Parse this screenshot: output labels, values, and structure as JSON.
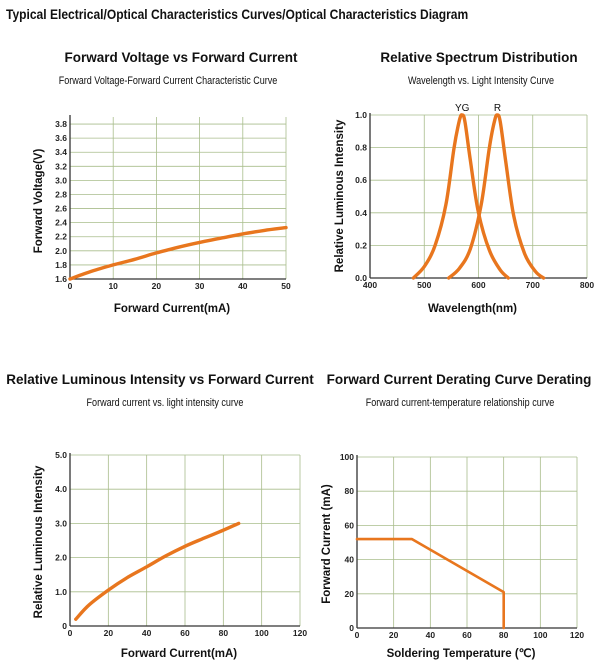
{
  "page_title": "Typical Electrical/Optical Characteristics Curves/Optical Characteristics Diagram",
  "colors": {
    "curve": "#E8761E",
    "grid": "#a9bd8c",
    "axis": "#333333",
    "curve_drop": "#d9635a"
  },
  "chart_data": [
    {
      "type": "line",
      "title": "Forward Voltage vs Forward Current",
      "subtitle": "Forward Voltage-Forward Current Characteristic Curve",
      "xlabel": "Forward Current(mA)",
      "ylabel": "Forward Voltage(V)",
      "xlim": [
        0,
        50
      ],
      "ylim": [
        1.6,
        3.9
      ],
      "xticks": [
        "0",
        "10",
        "20",
        "30",
        "40",
        "50"
      ],
      "yticks": [
        "1.6",
        "1.8",
        "2.0",
        "2.2",
        "2.4",
        "2.6",
        "2.8",
        "3.0",
        "3.2",
        "3.4",
        "3.6",
        "3.8"
      ],
      "grid": true,
      "series": [
        {
          "x": [
            0,
            5,
            10,
            15,
            20,
            25,
            30,
            35,
            40,
            45,
            50
          ],
          "y": [
            1.6,
            1.71,
            1.8,
            1.88,
            1.97,
            2.05,
            2.12,
            2.18,
            2.24,
            2.29,
            2.33
          ]
        }
      ]
    },
    {
      "type": "line",
      "title": "Relative Spectrum Distribution",
      "subtitle": "Wavelength vs. Light Intensity Curve",
      "xlabel": "Wavelength(nm)",
      "ylabel": "Relative Luminous Intensity",
      "xlim": [
        400,
        800
      ],
      "ylim": [
        0,
        1.0
      ],
      "xticks": [
        "400",
        "500",
        "600",
        "700",
        "800"
      ],
      "yticks": [
        "0.0",
        "0.2",
        "0.4",
        "0.6",
        "0.8",
        "1.0"
      ],
      "grid": true,
      "series": [
        {
          "name": "YG",
          "x": [
            480,
            500,
            520,
            540,
            555,
            565,
            570,
            575,
            585,
            600,
            620,
            640,
            655
          ],
          "y": [
            0.0,
            0.07,
            0.2,
            0.45,
            0.8,
            0.97,
            1.0,
            0.96,
            0.72,
            0.4,
            0.17,
            0.05,
            0.0
          ]
        },
        {
          "name": "R",
          "x": [
            545,
            565,
            585,
            605,
            620,
            630,
            635,
            640,
            650,
            665,
            685,
            705,
            720
          ],
          "y": [
            0.0,
            0.06,
            0.18,
            0.45,
            0.8,
            0.97,
            1.0,
            0.96,
            0.72,
            0.38,
            0.15,
            0.04,
            0.0
          ]
        }
      ]
    },
    {
      "type": "line",
      "title": "Relative Luminous Intensity vs Forward Current",
      "subtitle": "Forward current vs. light intensity curve",
      "xlabel": "Forward Current(mA)",
      "ylabel": "Relative Luminous Intensity",
      "xlim": [
        0,
        120
      ],
      "ylim": [
        0,
        5.0
      ],
      "xticks": [
        "0",
        "20",
        "40",
        "60",
        "80",
        "100",
        "120"
      ],
      "yticks": [
        "0",
        "1.0",
        "2.0",
        "3.0",
        "4.0",
        "5.0"
      ],
      "grid": true,
      "series": [
        {
          "x": [
            3,
            10,
            20,
            30,
            40,
            50,
            60,
            70,
            80,
            88
          ],
          "y": [
            0.2,
            0.62,
            1.05,
            1.42,
            1.73,
            2.05,
            2.33,
            2.57,
            2.8,
            3.0
          ]
        }
      ]
    },
    {
      "type": "line",
      "title": "Forward Current Derating Curve Derating",
      "subtitle": "Forward current-temperature relationship curve",
      "xlabel": "Soldering Temperature (℃)",
      "ylabel": "Forward Current (mA)",
      "xlim": [
        0,
        120
      ],
      "ylim": [
        0,
        100
      ],
      "xticks": [
        "0",
        "20",
        "40",
        "60",
        "80",
        "100",
        "120"
      ],
      "yticks": [
        "0",
        "20",
        "40",
        "60",
        "80",
        "100"
      ],
      "grid": true,
      "series": [
        {
          "x": [
            0,
            30,
            80,
            80
          ],
          "y": [
            52,
            52,
            21,
            0
          ]
        }
      ]
    }
  ]
}
